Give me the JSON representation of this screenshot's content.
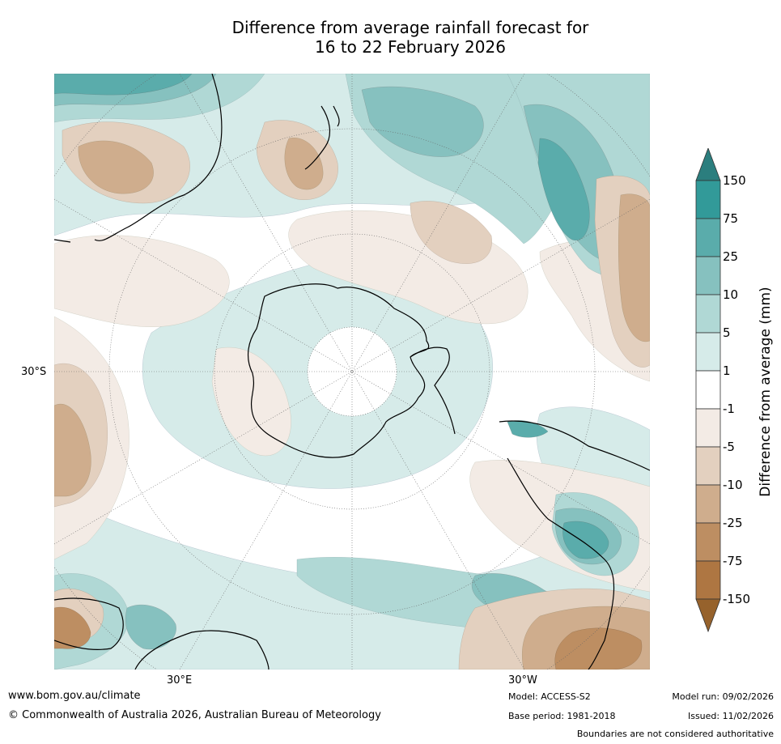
{
  "title": {
    "line1": "Difference from average rainfall forecast for",
    "line2": "16 to 22 February 2026"
  },
  "map": {
    "projection": "South polar stereographic",
    "graticule_labels": {
      "lat": "30°S",
      "lon_east": "30°E",
      "lon_west": "30°W"
    }
  },
  "colorbar": {
    "title": "Difference from average (mm)",
    "ticks": [
      "150",
      "75",
      "25",
      "10",
      "5",
      "1",
      "-1",
      "-5",
      "-10",
      "-25",
      "-75",
      "-150"
    ],
    "colors": {
      "over": "#2b7e7e",
      "b150_75": "#329a99",
      "b75_25": "#5aacab",
      "b25_10": "#86c1bf",
      "b10_5": "#b0d8d5",
      "b5_1": "#d6ebe9",
      "b1_m1": "#ffffff",
      "bm1_m5": "#f3ebe5",
      "bm5_m10": "#e3d0bf",
      "bm10_m25": "#cfad8d",
      "bm25_m75": "#bd8e62",
      "bm75_m150": "#ae7642",
      "under": "#96622c"
    }
  },
  "footer": {
    "website": "www.bom.gov.au/climate",
    "copyright": "© Commonwealth of Australia 2026, Australian Bureau of Meteorology",
    "model": "Model: ACCESS-S2",
    "base_period": "Base period: 1981-2018",
    "model_run": "Model run: 09/02/2026",
    "issued": "Issued: 11/02/2026",
    "boundaries": "Boundaries are not considered authoritative"
  }
}
